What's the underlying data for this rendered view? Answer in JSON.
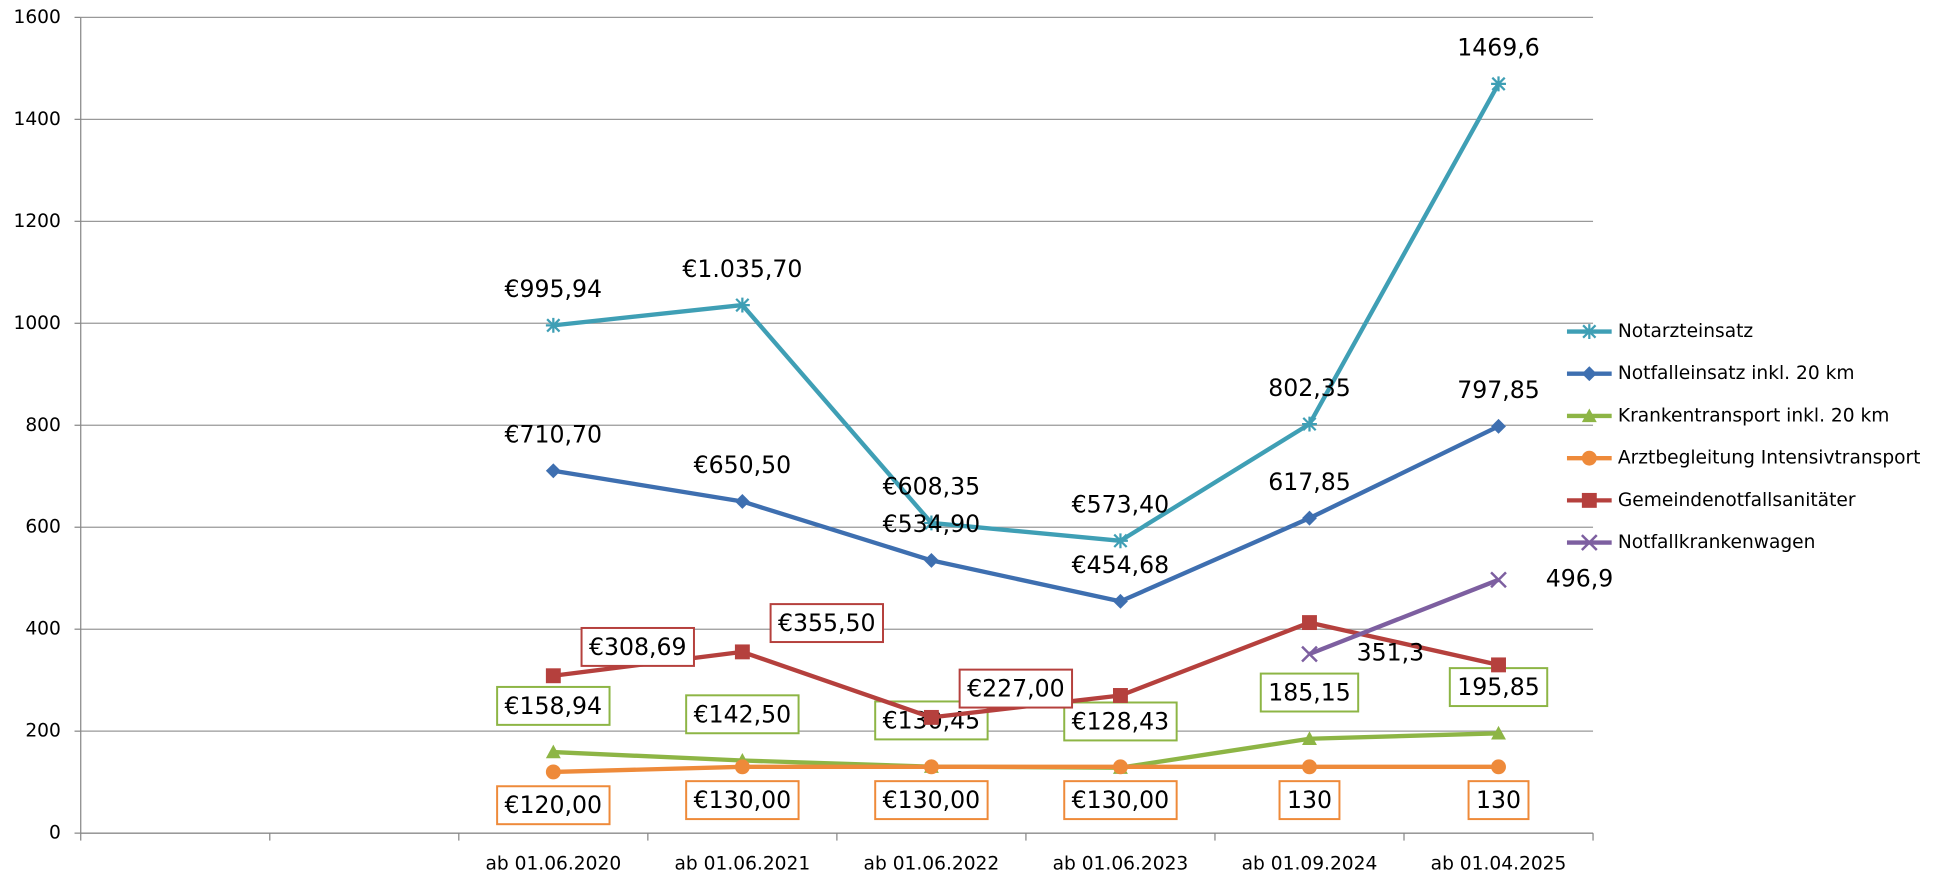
{
  "chart_data": {
    "type": "line",
    "categories": [
      null,
      null,
      "ab 01.06.2020",
      "ab 01.06.2021",
      "ab 01.06.2022",
      "ab 01.06.2023",
      "ab 01.09.2024",
      "ab 01.04.2025"
    ],
    "ylim": [
      0,
      1600
    ],
    "yticks": [
      0,
      200,
      400,
      600,
      800,
      1000,
      1200,
      1400,
      1600
    ],
    "grid": true,
    "legend": "right",
    "series": [
      {
        "name": "Notarzteinsatz",
        "color": "#3f9fb5",
        "marker": "asterisk",
        "label_box": false,
        "values": [
          null,
          null,
          995.94,
          1035.7,
          608.35,
          573.4,
          802.35,
          1469.6
        ],
        "value_labels": [
          null,
          null,
          "€995,94",
          "€1.035,70",
          "€608,35",
          "€573,40",
          "802,35",
          "1469,6"
        ]
      },
      {
        "name": "Notfalleinsatz inkl. 20 km",
        "color": "#3e6fb0",
        "marker": "diamond",
        "label_box": false,
        "values": [
          null,
          null,
          710.7,
          650.5,
          534.9,
          454.68,
          617.85,
          797.85
        ],
        "value_labels": [
          null,
          null,
          "€710,70",
          "€650,50",
          "€534,90",
          "€454,68",
          "617,85",
          "797,85"
        ]
      },
      {
        "name": "Krankentransport inkl. 20 km",
        "color": "#8db545",
        "marker": "triangle",
        "label_box": true,
        "values": [
          null,
          null,
          158.94,
          142.5,
          130.45,
          128.43,
          185.15,
          195.85
        ],
        "value_labels": [
          null,
          null,
          "€158,94",
          "€142,50",
          "€130,45",
          "€128,43",
          "185,15",
          "195,85"
        ]
      },
      {
        "name": "Arztbegleitung Intensivtransport",
        "color": "#ee8a3a",
        "marker": "circle",
        "label_box": true,
        "values": [
          null,
          null,
          120,
          130,
          130,
          130,
          130,
          130
        ],
        "value_labels": [
          null,
          null,
          "€120,00",
          "€130,00",
          "€130,00",
          "€130,00",
          "130",
          "130"
        ]
      },
      {
        "name": "Gemeindenotfallsanitäter",
        "color": "#b5403d",
        "marker": "square",
        "label_box": true,
        "values": [
          null,
          null,
          308.69,
          355.5,
          227.0,
          270,
          413,
          330
        ],
        "value_labels": [
          null,
          null,
          "€308,69",
          "€355,50",
          "€227,00",
          null,
          null,
          null
        ]
      },
      {
        "name": "Notfallkrankenwagen",
        "color": "#7d5fa0",
        "marker": "x",
        "label_box": false,
        "values": [
          null,
          null,
          null,
          null,
          null,
          null,
          351.3,
          496.9
        ],
        "value_labels": [
          null,
          null,
          null,
          null,
          null,
          null,
          "351,3",
          "496,9"
        ]
      }
    ]
  }
}
